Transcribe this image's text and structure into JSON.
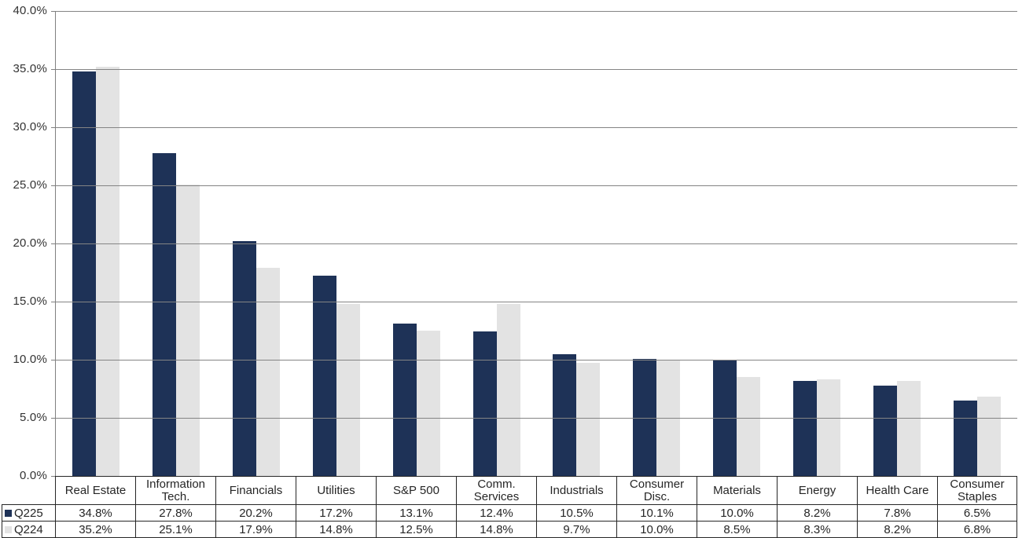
{
  "chart_data": {
    "type": "bar",
    "grouping": "grouped",
    "title": "",
    "xlabel": "",
    "ylabel": "",
    "categories": [
      "Real Estate",
      "Information Tech.",
      "Financials",
      "Utilities",
      "S&P 500",
      "Comm. Services",
      "Industrials",
      "Consumer Disc.",
      "Materials",
      "Energy",
      "Health Care",
      "Consumer Staples"
    ],
    "category_labels": [
      "Real Estate",
      "Information\nTech.",
      "Financials",
      "Utilities",
      "S&P 500",
      "Comm.\nServices",
      "Industrials",
      "Consumer\nDisc.",
      "Materials",
      "Energy",
      "Health Care",
      "Consumer\nStaples"
    ],
    "series": [
      {
        "name": "Q225",
        "color": "#1E3257",
        "values": [
          34.8,
          27.8,
          20.2,
          17.2,
          13.1,
          12.4,
          10.5,
          10.1,
          10.0,
          8.2,
          7.8,
          6.5
        ]
      },
      {
        "name": "Q224",
        "color": "#E3E3E3",
        "values": [
          35.2,
          25.1,
          17.9,
          14.8,
          12.5,
          14.8,
          9.7,
          10.0,
          8.5,
          8.3,
          8.2,
          6.8
        ]
      }
    ],
    "ylim": [
      0,
      40
    ],
    "ytick_step": 5,
    "ytick_labels": [
      "40.0%",
      "35.0%",
      "30.0%",
      "25.0%",
      "20.0%",
      "15.0%",
      "10.0%",
      "5.0%",
      "0.0%"
    ],
    "value_suffix": "%",
    "grid": true,
    "legend_position": "data-table-left",
    "data_table_shown": true
  },
  "colors": {
    "background": "#FFFFFF",
    "gridline": "#848484",
    "axis": "#808080",
    "table_border": "#262626",
    "text": "#262626"
  }
}
